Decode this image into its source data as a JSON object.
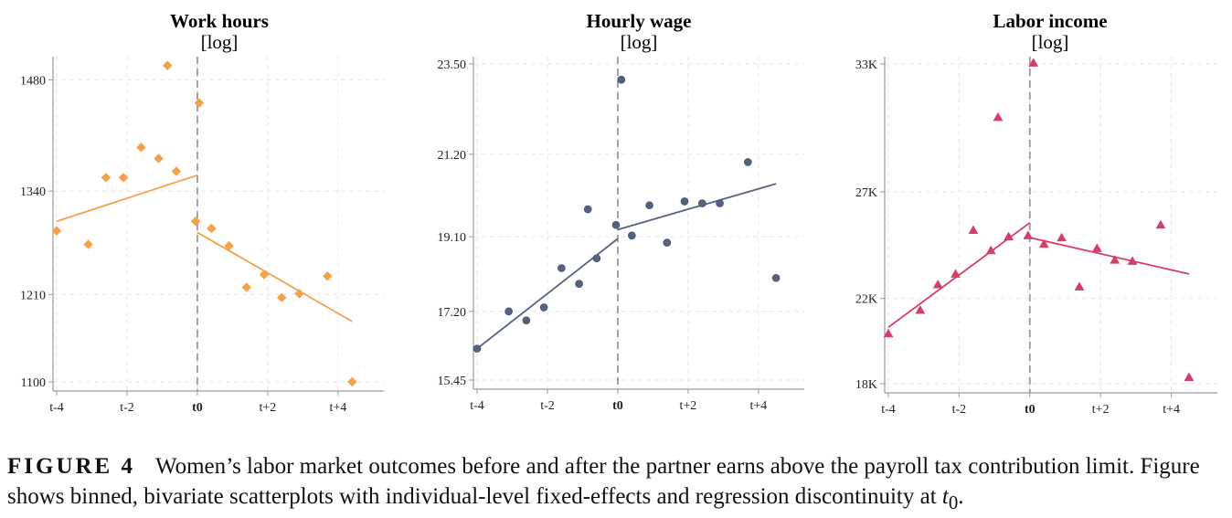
{
  "colors": {
    "work_hours": "#f4a24a",
    "hourly_wage": "#56627f",
    "labor_income": "#d43e67",
    "grid": "#e6e6e6",
    "axis": "#9a9a9a",
    "cutoff": "#9a9a9a"
  },
  "chart_data": [
    {
      "type": "scatter",
      "title": "Work hours",
      "subtitle": "[log]",
      "marker": "diamond",
      "xlim": [
        -4.1,
        4.4
      ],
      "ylim": [
        1100,
        1500
      ],
      "yticks": [
        1100,
        1210,
        1340,
        1480
      ],
      "ytick_labels": [
        "1100",
        "1210",
        "1340",
        "1480"
      ],
      "xticks": [
        -4,
        -2,
        0,
        2,
        4
      ],
      "xtick_labels": [
        "t-4",
        "t-2",
        "t0",
        "t+2",
        "t+4"
      ],
      "cutoff": 0,
      "grid": true,
      "points": {
        "x": [
          -4.0,
          -3.1,
          -2.6,
          -2.1,
          -1.6,
          -1.1,
          -0.85,
          -0.6,
          -0.05,
          0.05,
          0.4,
          0.9,
          1.4,
          1.9,
          2.4,
          2.9,
          3.7,
          4.4
        ],
        "y": [
          1290,
          1273,
          1357,
          1357,
          1395,
          1381,
          1498,
          1365,
          1302,
          1451,
          1293,
          1271,
          1219,
          1235,
          1206,
          1211,
          1233,
          1100
        ]
      },
      "fits": [
        {
          "x": [
            -4.0,
            0.0
          ],
          "y": [
            1302,
            1360
          ]
        },
        {
          "x": [
            0.0,
            4.4
          ],
          "y": [
            1288,
            1176
          ]
        }
      ]
    },
    {
      "type": "scatter",
      "title": "Hourly wage",
      "subtitle": "[log]",
      "marker": "circle",
      "xlim": [
        -4.1,
        4.6
      ],
      "ylim": [
        15.45,
        23.5
      ],
      "yticks": [
        15.45,
        17.2,
        19.1,
        21.2,
        23.5
      ],
      "ytick_labels": [
        "15.45",
        "17.20",
        "19.10",
        "21.20",
        "23.50"
      ],
      "xticks": [
        -4,
        -2,
        0,
        2,
        4
      ],
      "xtick_labels": [
        "t-4",
        "t-2",
        "t0",
        "t+2",
        "t+4"
      ],
      "cutoff": 0,
      "grid": true,
      "points": {
        "x": [
          -4.0,
          -3.1,
          -2.6,
          -2.1,
          -1.6,
          -1.1,
          -0.85,
          -0.6,
          -0.05,
          0.1,
          0.4,
          0.9,
          1.4,
          1.9,
          2.4,
          2.9,
          3.7,
          4.5
        ],
        "y": [
          16.25,
          17.2,
          16.97,
          17.3,
          18.3,
          17.9,
          19.8,
          18.55,
          19.4,
          23.1,
          19.13,
          19.9,
          18.95,
          20.0,
          19.95,
          19.95,
          21.0,
          18.05
        ]
      },
      "fits": [
        {
          "x": [
            -4.0,
            0.0
          ],
          "y": [
            16.25,
            19.05
          ]
        },
        {
          "x": [
            0.0,
            4.5
          ],
          "y": [
            19.28,
            20.45
          ]
        }
      ]
    },
    {
      "type": "scatter",
      "title": "Labor income",
      "subtitle": "[log]",
      "marker": "triangle",
      "xlim": [
        -4.1,
        4.6
      ],
      "ylim": [
        18000,
        33000
      ],
      "yticks": [
        18000,
        22000,
        27000,
        33000
      ],
      "ytick_labels": [
        "18K",
        "22K",
        "27K",
        "33K"
      ],
      "xticks": [
        -4,
        -2,
        0,
        2,
        4
      ],
      "xtick_labels": [
        "t-4",
        "t-2",
        "t0",
        "t+2",
        "t+4"
      ],
      "cutoff": 0,
      "grid": true,
      "points": {
        "x": [
          -4.0,
          -3.1,
          -2.6,
          -2.1,
          -1.6,
          -1.1,
          -0.9,
          -0.6,
          -0.05,
          0.1,
          0.4,
          0.9,
          1.4,
          1.9,
          2.4,
          2.9,
          3.7,
          4.5
        ],
        "y": [
          20350,
          21450,
          22650,
          23150,
          25200,
          24250,
          30500,
          24900,
          24950,
          33050,
          24550,
          24850,
          22550,
          24350,
          23800,
          23750,
          25450,
          18300
        ]
      },
      "fits": [
        {
          "x": [
            -4.0,
            0.0
          ],
          "y": [
            20650,
            25550
          ]
        },
        {
          "x": [
            0.0,
            4.5
          ],
          "y": [
            24850,
            23150
          ]
        }
      ]
    }
  ],
  "caption": {
    "label": "FIGURE 4",
    "text": "Women’s labor market outcomes before and after the partner earns above the payroll tax contribution limit. Figure shows binned, bivariate scatterplots with individual-level fixed-effects and regression discontinuity at ",
    "math": "t",
    "math_sub": "0",
    "end": "."
  }
}
